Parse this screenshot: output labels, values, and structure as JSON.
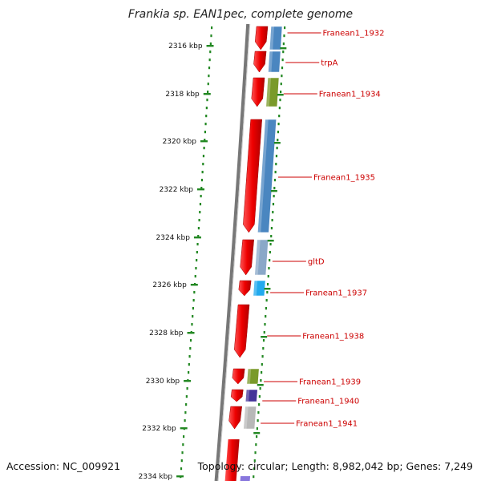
{
  "title": "Frankia sp. EAN1pec, complete genome",
  "accession": "Accession: NC_009921",
  "topology": "Topology: circular; Length: 8,982,042 bp; Genes: 7,249",
  "ticks": [
    "2316 kbp",
    "2318 kbp",
    "2320 kbp",
    "2322 kbp",
    "2324 kbp",
    "2326 kbp",
    "2328 kbp",
    "2330 kbp",
    "2332 kbp",
    "2334 kbp"
  ],
  "genes": [
    {
      "label": "Franean1_1932",
      "cog_color": "#4a86c0"
    },
    {
      "label": "trpA",
      "cog_color": "#4a86c0"
    },
    {
      "label": "Franean1_1934",
      "cog_color": "#7a9a2a"
    },
    {
      "label": "Franean1_1935",
      "cog_color": "#4a86c0"
    },
    {
      "label": "gltD",
      "cog_color": "#8aa8c8"
    },
    {
      "label": "Franean1_1937",
      "cog_color": "#22aaee"
    },
    {
      "label": "Franean1_1938",
      "cog_color": ""
    },
    {
      "label": "Franean1_1939",
      "cog_color": "#7a9a2a"
    },
    {
      "label": "Franean1_1940",
      "cog_color": "#443399"
    },
    {
      "label": "Franean1_1941",
      "cog_color": "#b8b8b8"
    }
  ],
  "colors": {
    "forward_strand": "#ee1111",
    "backbone": "#888888",
    "dots": "#228822",
    "label": "#cc0000"
  }
}
